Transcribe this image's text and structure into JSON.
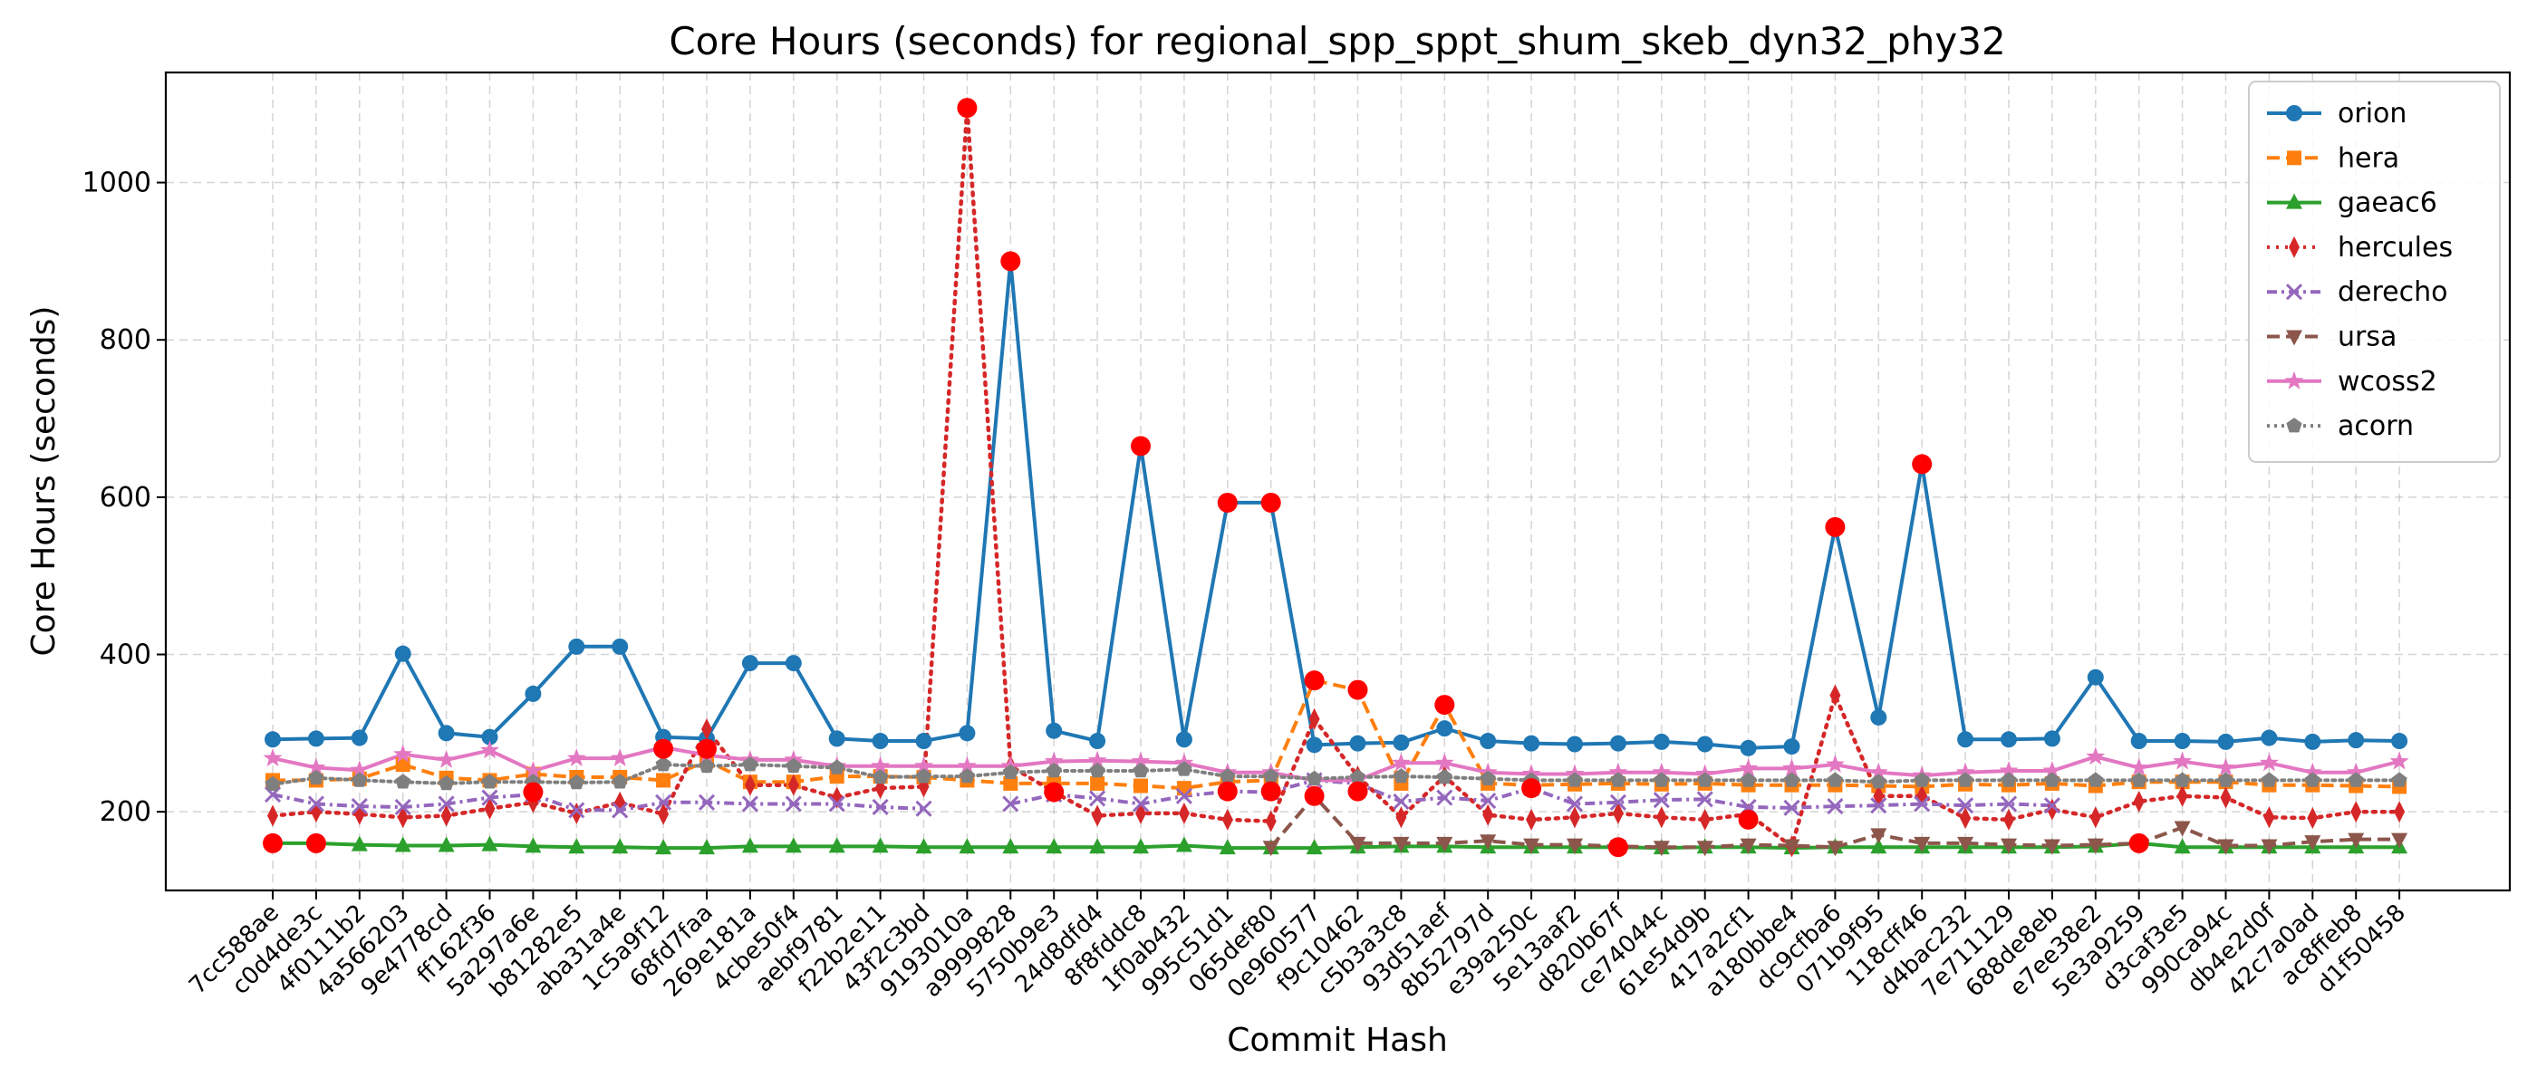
{
  "chart_data": {
    "type": "line",
    "title": "Core Hours (seconds) for regional_spp_sppt_shum_skeb_dyn32_phy32",
    "xlabel": "Commit Hash",
    "ylabel": "Core Hours (seconds)",
    "ylim": [
      100,
      1140
    ],
    "yticks": [
      200,
      400,
      600,
      800,
      1000
    ],
    "grid": true,
    "legend_position": "upper right",
    "categories": [
      "7cc588ae",
      "c0d4de3c",
      "4f0111b2",
      "4a566203",
      "9e4778cd",
      "ff162f36",
      "5a297a6e",
      "b81282e5",
      "aba31a4e",
      "1c5a9f12",
      "68fd7faa",
      "269e181a",
      "4cbe50f4",
      "aebf9781",
      "f22b2e11",
      "43f2c3bd",
      "9193010a",
      "a9999828",
      "5750b9e3",
      "24d8dfd4",
      "8f8fddc8",
      "1f0ab432",
      "995c51d1",
      "065def80",
      "0e960577",
      "f9c10462",
      "c5b3a3c8",
      "93d51aef",
      "8b52797d",
      "e39a250c",
      "5e13aaf2",
      "d820b67f",
      "ce74044c",
      "61e54d9b",
      "417a2cf1",
      "a180bbe4",
      "dc9cfba6",
      "071b9f95",
      "118cff46",
      "d4bac232",
      "7e711129",
      "688de8eb",
      "e7ee38e2",
      "5e3a9259",
      "d3caf3e5",
      "990ca94c",
      "db4e2d0f",
      "42c7a0ad",
      "ac8ffeb8",
      "d1f50458"
    ],
    "series": [
      {
        "name": "orion",
        "color": "#1f77b4",
        "dash": "",
        "marker": "circle",
        "values": [
          292,
          293,
          294,
          401,
          300,
          295,
          350,
          410,
          410,
          295,
          293,
          389,
          389,
          293,
          290,
          290,
          300,
          900,
          303,
          290,
          665,
          292,
          593,
          593,
          285,
          287,
          288,
          306,
          290,
          287,
          286,
          287,
          289,
          286,
          281,
          283,
          562,
          320,
          642,
          292,
          292,
          293,
          371,
          290,
          290,
          289,
          294,
          289,
          291,
          290
        ]
      },
      {
        "name": "hera",
        "color": "#ff7f0e",
        "dash": "14,7",
        "marker": "square",
        "values": [
          240,
          240,
          242,
          260,
          243,
          240,
          248,
          244,
          244,
          240,
          265,
          238,
          238,
          245,
          245,
          244,
          240,
          236,
          236,
          236,
          233,
          230,
          238,
          240,
          367,
          355,
          236,
          336,
          236,
          234,
          235,
          236,
          235,
          236,
          234,
          234,
          234,
          233,
          232,
          235,
          234,
          236,
          233,
          238,
          238,
          238,
          234,
          234,
          233,
          232
        ]
      },
      {
        "name": "gaeac6",
        "color": "#2ca02c",
        "dash": "",
        "marker": "triangle",
        "values": [
          160,
          160,
          158,
          157,
          157,
          158,
          156,
          155,
          155,
          154,
          154,
          156,
          156,
          156,
          156,
          155,
          155,
          155,
          155,
          155,
          155,
          157,
          154,
          154,
          154,
          155,
          156,
          156,
          155,
          155,
          155,
          155,
          154,
          155,
          155,
          154,
          155,
          155,
          155,
          155,
          155,
          155,
          156,
          160,
          155,
          155,
          155,
          155,
          155,
          155
        ]
      },
      {
        "name": "hercules",
        "color": "#d62728",
        "dash": "3,7",
        "marker": "thin_diamond",
        "values": [
          195,
          200,
          197,
          193,
          195,
          204,
          212,
          198,
          212,
          197,
          305,
          234,
          234,
          218,
          230,
          232,
          1095,
          258,
          225,
          195,
          198,
          198,
          190,
          188,
          318,
          245,
          193,
          245,
          196,
          190,
          193,
          198,
          193,
          190,
          197,
          156,
          348,
          220,
          220,
          192,
          190,
          203,
          193,
          213,
          220,
          218,
          193,
          192,
          200,
          200
        ]
      },
      {
        "name": "derecho",
        "color": "#9467bd",
        "dash": "11,5,3,5",
        "marker": "x",
        "values": [
          222,
          210,
          207,
          206,
          210,
          218,
          222,
          202,
          202,
          212,
          212,
          210,
          210,
          210,
          206,
          204,
          null,
          210,
          222,
          217,
          210,
          220,
          226,
          225,
          240,
          236,
          213,
          218,
          214,
          230,
          210,
          212,
          215,
          216,
          206,
          205,
          207,
          208,
          210,
          208,
          210,
          208,
          null,
          null,
          null,
          null,
          null,
          null,
          null,
          null
        ]
      },
      {
        "name": "ursa",
        "color": "#8c564b",
        "dash": "14,7",
        "marker": "triangle_down",
        "values": [
          null,
          null,
          null,
          null,
          null,
          null,
          null,
          null,
          null,
          null,
          null,
          null,
          null,
          null,
          null,
          null,
          null,
          null,
          null,
          null,
          null,
          null,
          null,
          155,
          220,
          160,
          160,
          160,
          163,
          158,
          158,
          156,
          155,
          155,
          158,
          157,
          155,
          171,
          160,
          160,
          158,
          157,
          158,
          160,
          180,
          157,
          157,
          162,
          165,
          165
        ]
      },
      {
        "name": "wcoss2",
        "color": "#e377c2",
        "dash": "",
        "marker": "star",
        "values": [
          268,
          256,
          253,
          273,
          266,
          278,
          252,
          268,
          268,
          282,
          272,
          266,
          266,
          258,
          258,
          258,
          258,
          258,
          264,
          265,
          264,
          262,
          250,
          250,
          240,
          240,
          262,
          262,
          250,
          248,
          248,
          250,
          250,
          248,
          255,
          255,
          260,
          250,
          246,
          250,
          252,
          252,
          270,
          256,
          264,
          256,
          262,
          250,
          250,
          264
        ]
      },
      {
        "name": "acorn",
        "color": "#7f7f7f",
        "dash": "3,5",
        "marker": "pentagon",
        "values": [
          235,
          243,
          240,
          238,
          236,
          238,
          238,
          237,
          238,
          260,
          258,
          260,
          258,
          256,
          244,
          245,
          245,
          250,
          252,
          252,
          252,
          254,
          245,
          245,
          242,
          244,
          245,
          244,
          242,
          240,
          240,
          240,
          240,
          240,
          240,
          240,
          240,
          238,
          240,
          240,
          240,
          240,
          240,
          240,
          240,
          240,
          240,
          240,
          240,
          240
        ]
      }
    ],
    "highlight_markers": {
      "color": "#ff0000",
      "points": [
        [
          0,
          160
        ],
        [
          1,
          160
        ],
        [
          6,
          225
        ],
        [
          9,
          280
        ],
        [
          10,
          280
        ],
        [
          16,
          1095
        ],
        [
          17,
          900
        ],
        [
          18,
          225
        ],
        [
          20,
          665
        ],
        [
          22,
          593
        ],
        [
          22,
          226
        ],
        [
          23,
          593
        ],
        [
          23,
          226
        ],
        [
          24,
          367
        ],
        [
          24,
          220
        ],
        [
          25,
          355
        ],
        [
          25,
          226
        ],
        [
          27,
          336
        ],
        [
          29,
          230
        ],
        [
          31,
          155
        ],
        [
          34,
          190
        ],
        [
          36,
          562
        ],
        [
          38,
          642
        ],
        [
          43,
          160
        ]
      ]
    }
  }
}
